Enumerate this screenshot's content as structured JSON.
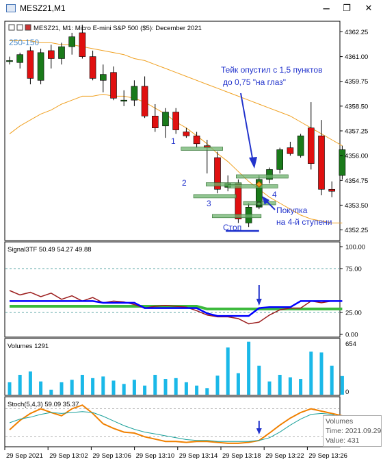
{
  "window": {
    "title": "MESZ21,M1",
    "minimize_glyph": "─",
    "restore_glyph": "❐",
    "close_glyph": "✕"
  },
  "main_panel": {
    "symbol_header": "MESZ21, M1:  Micro E-mini S&P 500 ($5): December 2021",
    "range_label": "250-150",
    "annotation_take": "Тейк опустил с 1,5 пунктов",
    "annotation_take_2": "до 0,75 \"на глаз\"",
    "annotation_buy": "Покупка",
    "annotation_buy_2": "на 4-й ступени",
    "annotation_stop": "Стоп",
    "level_1": "1",
    "level_2": "2",
    "level_3": "3",
    "level_4": "4",
    "colors": {
      "bull": "#1a7a1a",
      "bear": "#e01010",
      "annotation": "#2233cc",
      "ma": "#f0a020"
    }
  },
  "signal_panel": {
    "header": "Signal3TF 50.49 54.27 49.88",
    "y_ticks": [
      "100.00",
      "75.00",
      "25.00",
      "0.00"
    ]
  },
  "volume_panel": {
    "header": "Volumes 1291",
    "y_ticks": [
      "654",
      "0"
    ],
    "color": "#1ab8e8"
  },
  "stoch_panel": {
    "header": "Stoch(5,4,3) 59.09 35.37"
  },
  "tooltip": {
    "title": "Volumes",
    "time": "Time: 2021.09.29",
    "value": "Value: 431"
  },
  "x_axis": {
    "labels": [
      "29 Sep 2021",
      "29 Sep 13:02",
      "29 Sep 13:06",
      "29 Sep 13:10",
      "29 Sep 13:14",
      "29 Sep 13:18",
      "29 Sep 13:22",
      "29 Sep 13:26"
    ]
  },
  "chart_data": [
    {
      "type": "candlestick",
      "title": "MESZ21, M1:  Micro E-mini S&P 500 ($5): December 2021",
      "y_ticks": [
        4362.25,
        4361.0,
        4359.75,
        4358.5,
        4357.25,
        4356.0,
        4354.75,
        4353.5,
        4352.25
      ],
      "ylim": [
        4351.75,
        4362.75
      ],
      "candles": [
        {
          "o": 4360.8,
          "h": 4361.0,
          "l": 4360.6,
          "c": 4360.8
        },
        {
          "o": 4360.7,
          "h": 4361.2,
          "l": 4360.4,
          "c": 4361.1
        },
        {
          "o": 4361.3,
          "h": 4361.5,
          "l": 4359.6,
          "c": 4359.9
        },
        {
          "o": 4359.8,
          "h": 4361.4,
          "l": 4359.6,
          "c": 4361.2
        },
        {
          "o": 4361.3,
          "h": 4361.6,
          "l": 4360.4,
          "c": 4360.9
        },
        {
          "o": 4360.9,
          "h": 4361.7,
          "l": 4360.6,
          "c": 4361.5
        },
        {
          "o": 4361.5,
          "h": 4362.2,
          "l": 4361.1,
          "c": 4362.0
        },
        {
          "o": 4362.2,
          "h": 4362.6,
          "l": 4360.9,
          "c": 4361.0
        },
        {
          "o": 4361.0,
          "h": 4361.3,
          "l": 4359.8,
          "c": 4359.9
        },
        {
          "o": 4359.8,
          "h": 4360.6,
          "l": 4359.2,
          "c": 4360.1
        },
        {
          "o": 4360.2,
          "h": 4360.5,
          "l": 4358.8,
          "c": 4358.9
        },
        {
          "o": 4358.8,
          "h": 4359.3,
          "l": 4358.5,
          "c": 4358.8
        },
        {
          "o": 4358.8,
          "h": 4359.8,
          "l": 4358.5,
          "c": 4359.5
        },
        {
          "o": 4359.5,
          "h": 4360.0,
          "l": 4357.9,
          "c": 4358.0
        },
        {
          "o": 4358.0,
          "h": 4358.6,
          "l": 4357.2,
          "c": 4357.4
        },
        {
          "o": 4357.5,
          "h": 4358.4,
          "l": 4356.9,
          "c": 4358.2
        },
        {
          "o": 4358.2,
          "h": 4358.4,
          "l": 4357.1,
          "c": 4357.3
        },
        {
          "o": 4357.2,
          "h": 4357.4,
          "l": 4356.9,
          "c": 4357.0
        },
        {
          "o": 4357.0,
          "h": 4357.2,
          "l": 4356.4,
          "c": 4356.6
        },
        {
          "o": 4356.5,
          "h": 4356.8,
          "l": 4355.1,
          "c": 4356.4
        },
        {
          "o": 4355.9,
          "h": 4356.2,
          "l": 4354.1,
          "c": 4354.3
        },
        {
          "o": 4354.4,
          "h": 4355.0,
          "l": 4354.2,
          "c": 4354.6
        },
        {
          "o": 4354.6,
          "h": 4354.8,
          "l": 4352.6,
          "c": 4352.8
        },
        {
          "o": 4352.6,
          "h": 4353.6,
          "l": 4352.4,
          "c": 4353.4
        },
        {
          "o": 4353.4,
          "h": 4355.0,
          "l": 4353.3,
          "c": 4354.8
        },
        {
          "o": 4354.8,
          "h": 4355.4,
          "l": 4354.6,
          "c": 4355.3
        },
        {
          "o": 4355.3,
          "h": 4356.4,
          "l": 4355.1,
          "c": 4356.3
        },
        {
          "o": 4356.4,
          "h": 4356.7,
          "l": 4356.0,
          "c": 4356.1
        },
        {
          "o": 4356.0,
          "h": 4357.1,
          "l": 4355.9,
          "c": 4357.0
        },
        {
          "o": 4357.4,
          "h": 4358.7,
          "l": 4355.3,
          "c": 4355.6
        },
        {
          "o": 4357.0,
          "h": 4357.8,
          "l": 4354.0,
          "c": 4354.3
        },
        {
          "o": 4354.3,
          "h": 4354.7,
          "l": 4353.9,
          "c": 4354.2
        },
        {
          "o": 4355.0,
          "h": 4356.5,
          "l": 4354.8,
          "c": 4356.3
        }
      ],
      "moving_averages": [
        {
          "name": "",
          "color": "#f0a020",
          "values": [
            4361.8,
            4361.8,
            4361.8,
            4361.7,
            4361.7,
            4361.6,
            4361.6,
            4361.5,
            4361.4,
            4361.3,
            4361.2,
            4361.1,
            4360.9,
            4360.8,
            4360.6,
            4360.4,
            4360.2,
            4360.0,
            4359.8,
            4359.6,
            4359.4,
            4359.2,
            4359.0,
            4358.8,
            4358.6,
            4358.4,
            4358.2,
            4358.0,
            4357.7,
            4357.4,
            4357.1,
            4356.8,
            4356.5
          ]
        },
        {
          "name": "",
          "color": "#f0a020",
          "values": [
            4357.1,
            4357.5,
            4357.8,
            4358.1,
            4358.3,
            4358.6,
            4358.8,
            4359.0,
            4359.0,
            4359.1,
            4359.0,
            4359.0,
            4358.9,
            4358.7,
            4358.4,
            4358.1,
            4357.7,
            4357.4,
            4357.0,
            4356.6,
            4356.1,
            4355.7,
            4355.2,
            4354.7,
            4354.3,
            4353.9,
            4353.6,
            4353.3,
            4353.0,
            4352.8,
            4352.7,
            4352.6,
            4352.6
          ]
        }
      ]
    },
    {
      "type": "line",
      "title": "Signal3TF 50.49 54.27 49.88",
      "ylim": [
        0,
        100
      ],
      "series": [
        {
          "name": "",
          "color": "#0000ff",
          "values": [
            38,
            38,
            38,
            38,
            38,
            38,
            38,
            38,
            38,
            36,
            36,
            36,
            36,
            30,
            30,
            30,
            30,
            30,
            30,
            24,
            21,
            21,
            21,
            21,
            30,
            31,
            31,
            31,
            38,
            38,
            38,
            38,
            38
          ]
        },
        {
          "name": "",
          "color": "#9b1c1c",
          "values": [
            50,
            45,
            48,
            43,
            47,
            40,
            44,
            38,
            42,
            36,
            38,
            37,
            34,
            30,
            32,
            33,
            32,
            31,
            27,
            22,
            20,
            20,
            18,
            12,
            14,
            22,
            28,
            30,
            30,
            38,
            36,
            38,
            38
          ]
        },
        {
          "name": "",
          "color": "#3cb93c",
          "values": [
            32,
            32,
            32,
            32,
            32,
            32,
            32,
            32,
            32,
            32,
            32,
            32,
            32,
            32,
            32,
            32,
            32,
            32,
            32,
            29,
            29,
            29,
            29,
            29,
            29,
            29,
            29,
            29,
            29,
            29,
            29,
            29,
            29
          ]
        }
      ],
      "hlines": [
        75,
        25
      ]
    },
    {
      "type": "bar",
      "title": "Volumes 1291",
      "ylim": [
        0,
        654
      ],
      "values": [
        150,
        240,
        280,
        160,
        60,
        150,
        180,
        240,
        200,
        220,
        170,
        130,
        180,
        110,
        240,
        190,
        200,
        150,
        110,
        80,
        230,
        570,
        260,
        640,
        350,
        160,
        240,
        210,
        190,
        520,
        510,
        350,
        225
      ]
    },
    {
      "type": "line",
      "title": "Stoch(5,4,3) 59.09 35.37",
      "ylim": [
        0,
        100
      ],
      "series": [
        {
          "name": "",
          "color": "#f08000",
          "values": [
            35,
            55,
            70,
            80,
            72,
            65,
            80,
            88,
            70,
            48,
            38,
            30,
            28,
            20,
            15,
            10,
            10,
            8,
            10,
            10,
            8,
            6,
            6,
            8,
            12,
            28,
            45,
            60,
            72,
            80,
            75,
            70,
            65
          ]
        },
        {
          "name": "",
          "color": "#1aa09a",
          "values": [
            50,
            58,
            62,
            68,
            72,
            70,
            72,
            74,
            72,
            64,
            54,
            44,
            36,
            30,
            26,
            22,
            18,
            14,
            12,
            12,
            10,
            10,
            10,
            10,
            12,
            18,
            30,
            45,
            58,
            68,
            70,
            68,
            60
          ]
        }
      ],
      "hlines": [
        80,
        20
      ]
    }
  ]
}
